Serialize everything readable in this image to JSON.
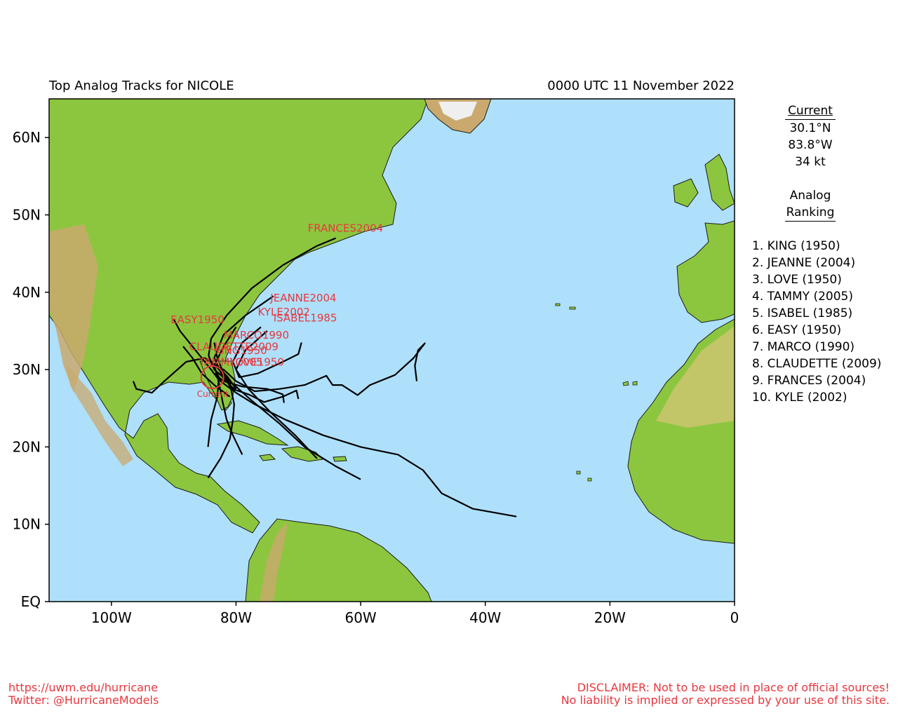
{
  "header": {
    "title": "Top Analog Tracks for NICOLE",
    "datetime": "0000 UTC 11 November 2022"
  },
  "map": {
    "lat_labels": [
      "EQ",
      "10N",
      "20N",
      "30N",
      "40N",
      "50N",
      "60N"
    ],
    "lat_values": [
      0,
      10,
      20,
      30,
      40,
      50,
      60
    ],
    "lon_labels": [
      "100W",
      "80W",
      "60W",
      "40W",
      "20W",
      "0"
    ],
    "lon_values": [
      -100,
      -80,
      -60,
      -40,
      -20,
      0
    ],
    "lon_range": [
      -110,
      0
    ],
    "lat_range": [
      0,
      65
    ],
    "colors": {
      "ocean": "#aee0fb",
      "land": "#8cc63f",
      "track": "#000000",
      "label": "#e8373e"
    },
    "current_marker_label": "Current",
    "current_position": {
      "lat": 30.1,
      "lon": -83.8
    },
    "tracks": [
      {
        "name": "FRANCES2004",
        "points": [
          [
            27.1,
            -80.2
          ],
          [
            28.5,
            -81.3
          ],
          [
            30.0,
            -83.5
          ],
          [
            31.8,
            -84.4
          ],
          [
            34.0,
            -84.0
          ],
          [
            37.0,
            -81.5
          ],
          [
            40.5,
            -77.5
          ],
          [
            43.5,
            -72.5
          ],
          [
            46.0,
            -67.0
          ],
          [
            47.0,
            -64.0
          ]
        ]
      },
      {
        "name": "JEANNE2004",
        "points": [
          [
            26.2,
            -70.0
          ],
          [
            27.3,
            -70.3
          ],
          [
            26.5,
            -72.5
          ],
          [
            25.8,
            -75.5
          ],
          [
            26.8,
            -78.0
          ],
          [
            27.4,
            -80.2
          ],
          [
            28.8,
            -82.0
          ],
          [
            31.5,
            -83.5
          ],
          [
            34.5,
            -82.0
          ],
          [
            37.0,
            -78.5
          ],
          [
            39.5,
            -74.0
          ]
        ]
      },
      {
        "name": "KYLE2002",
        "points": [
          [
            33.5,
            -69.5
          ],
          [
            32.0,
            -70.0
          ],
          [
            31.0,
            -72.5
          ],
          [
            29.5,
            -76.5
          ],
          [
            29.0,
            -79.5
          ],
          [
            31.0,
            -80.5
          ],
          [
            33.5,
            -79.0
          ],
          [
            35.5,
            -76.0
          ]
        ]
      },
      {
        "name": "ISABEL1985",
        "points": [
          [
            18.5,
            -67.0
          ],
          [
            21.5,
            -70.5
          ],
          [
            24.5,
            -74.5
          ],
          [
            27.5,
            -78.0
          ],
          [
            30.0,
            -80.0
          ],
          [
            32.5,
            -78.5
          ],
          [
            35.0,
            -75.0
          ]
        ]
      },
      {
        "name": "EASY1950",
        "points": [
          [
            20.0,
            -84.5
          ],
          [
            23.5,
            -84.0
          ],
          [
            26.5,
            -83.0
          ],
          [
            28.7,
            -82.8
          ],
          [
            30.0,
            -84.0
          ],
          [
            32.5,
            -86.5
          ],
          [
            35.0,
            -89.0
          ],
          [
            36.5,
            -90.0
          ]
        ]
      },
      {
        "name": "MARCO1990",
        "points": [
          [
            19.0,
            -79.0
          ],
          [
            21.5,
            -80.5
          ],
          [
            23.5,
            -81.5
          ],
          [
            26.0,
            -82.2
          ],
          [
            28.5,
            -82.8
          ],
          [
            30.5,
            -83.5
          ],
          [
            33.0,
            -82.0
          ],
          [
            35.5,
            -80.0
          ]
        ]
      },
      {
        "name": "CLAUDETTE2009",
        "points": [
          [
            26.5,
            -81.0
          ],
          [
            28.0,
            -83.5
          ],
          [
            29.5,
            -85.5
          ],
          [
            31.5,
            -87.0
          ],
          [
            33.0,
            -88.5
          ]
        ]
      },
      {
        "name": "KING1950",
        "points": [
          [
            16.0,
            -84.5
          ],
          [
            18.5,
            -82.5
          ],
          [
            21.0,
            -81.0
          ],
          [
            23.5,
            -80.5
          ],
          [
            25.5,
            -80.3
          ],
          [
            27.5,
            -80.8
          ],
          [
            29.5,
            -82.0
          ],
          [
            31.5,
            -83.0
          ],
          [
            33.5,
            -83.5
          ]
        ]
      },
      {
        "name": "TAMMY2005",
        "points": [
          [
            27.5,
            -80.0
          ],
          [
            29.0,
            -81.3
          ],
          [
            30.3,
            -82.8
          ],
          [
            31.5,
            -85.0
          ],
          [
            31.0,
            -88.0
          ],
          [
            28.5,
            -91.5
          ],
          [
            27.0,
            -93.5
          ],
          [
            27.5,
            -96.0
          ],
          [
            28.5,
            -96.5
          ]
        ]
      },
      {
        "name": "LOVE1950",
        "points": [
          [
            11.0,
            -35.0
          ],
          [
            12.0,
            -42.0
          ],
          [
            14.0,
            -47.0
          ],
          [
            17.0,
            -50.0
          ],
          [
            19.0,
            -54.0
          ],
          [
            20.0,
            -60.0
          ],
          [
            21.5,
            -66.0
          ],
          [
            23.5,
            -72.0
          ],
          [
            25.5,
            -77.0
          ],
          [
            27.0,
            -80.0
          ],
          [
            28.5,
            -82.5
          ],
          [
            30.0,
            -83.3
          ]
        ]
      }
    ],
    "extra_tracks": [
      {
        "points": [
          [
            15.8,
            -60.0
          ],
          [
            17.5,
            -64.0
          ],
          [
            20.0,
            -69.0
          ],
          [
            23.0,
            -73.0
          ],
          [
            26.0,
            -77.5
          ],
          [
            28.5,
            -81.0
          ],
          [
            30.4,
            -83.2
          ]
        ]
      },
      {
        "points": [
          [
            28.5,
            -51.0
          ],
          [
            30.5,
            -51.3
          ],
          [
            32.5,
            -50.8
          ],
          [
            33.4,
            -49.7
          ],
          [
            31.5,
            -51.5
          ],
          [
            29.3,
            -54.5
          ],
          [
            28.0,
            -58.5
          ],
          [
            26.7,
            -60.5
          ],
          [
            28.0,
            -63.0
          ],
          [
            28.0,
            -64.5
          ],
          [
            29.2,
            -65.5
          ],
          [
            28.0,
            -69.0
          ],
          [
            27.5,
            -73.0
          ],
          [
            27.2,
            -77.0
          ],
          [
            28.5,
            -80.0
          ],
          [
            30.0,
            -82.0
          ],
          [
            30.5,
            -83.5
          ]
        ]
      },
      {
        "points": [
          [
            25.7,
            -72.3
          ],
          [
            26.8,
            -72.5
          ],
          [
            27.5,
            -75.0
          ],
          [
            27.8,
            -79.0
          ],
          [
            28.5,
            -82.0
          ],
          [
            29.5,
            -83.5
          ]
        ]
      }
    ],
    "labels": [
      {
        "text": "FRANCES2004",
        "lat": 47.8,
        "lon": -68.5
      },
      {
        "text": "JEANNE2004",
        "lat": 38.8,
        "lon": -74.5
      },
      {
        "text": "KYLE2002",
        "lat": 37.0,
        "lon": -76.5
      },
      {
        "text": "ISABEL1985",
        "lat": 36.2,
        "lon": -74.0
      },
      {
        "text": "EASY1950",
        "lat": 36.0,
        "lon": -90.5
      },
      {
        "text": "MARCO1990",
        "lat": 34.0,
        "lon": -82.0
      },
      {
        "text": "CLAUDETTE2009",
        "lat": 32.5,
        "lon": -87.5
      },
      {
        "text": "KING1950",
        "lat": 32.0,
        "lon": -83.5
      },
      {
        "text": "TAMMY2005",
        "lat": 30.5,
        "lon": -86.0
      },
      {
        "text": "LOVE1950",
        "lat": 30.5,
        "lon": -81.0
      }
    ]
  },
  "current": {
    "header": "Current",
    "lat": "30.1°N",
    "lon": "83.8°W",
    "wind": "34 kt"
  },
  "analog": {
    "header1": "Analog",
    "header2": "Ranking",
    "items": [
      "1.  KING (1950)",
      "2.  JEANNE (2004)",
      "3.  LOVE (1950)",
      "4.  TAMMY (2005)",
      "5.  ISABEL (1985)",
      "6.  EASY (1950)",
      "7.  MARCO (1990)",
      "8.  CLAUDETTE (2009)",
      "9.  FRANCES (2004)",
      "10. KYLE (2002)"
    ]
  },
  "footer": {
    "url": "https://uwm.edu/hurricane",
    "twitter": "Twitter: @HurricaneModels",
    "disclaimer1": "DISCLAIMER: Not to be used in place of official sources!",
    "disclaimer2": "No liability is implied or expressed by your use of this site."
  }
}
